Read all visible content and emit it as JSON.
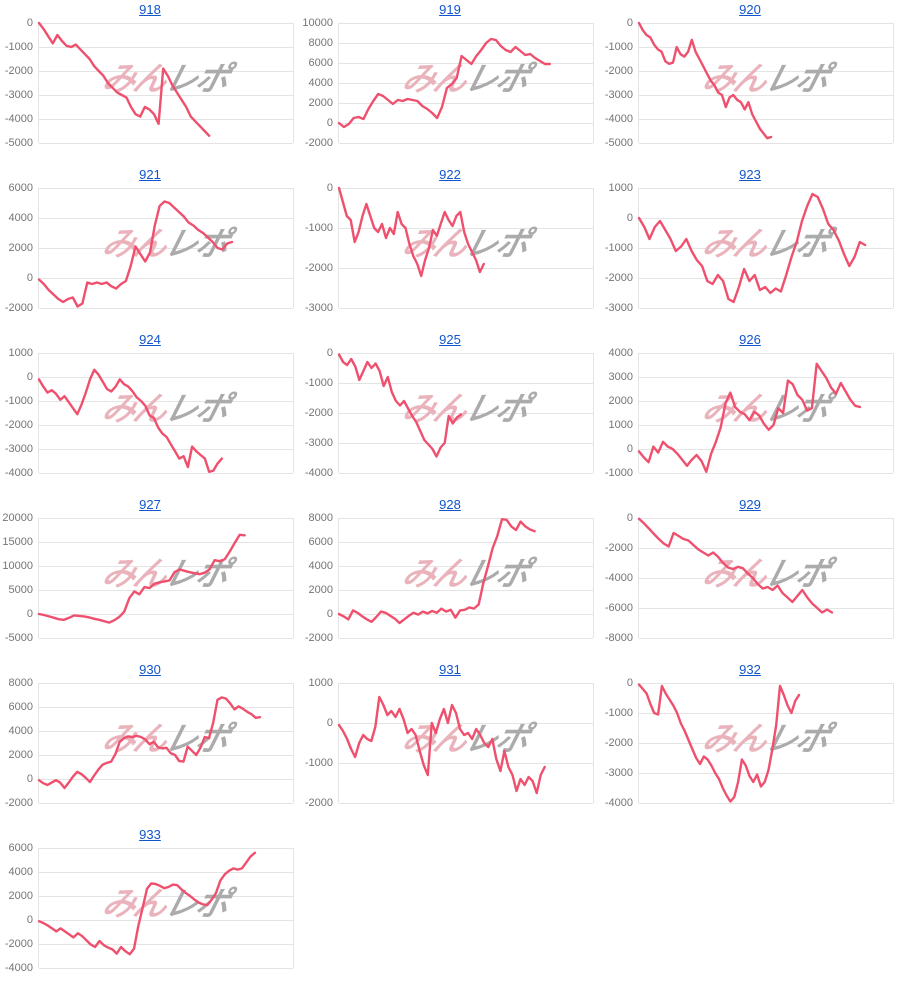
{
  "page": {
    "background": "#ffffff"
  },
  "style": {
    "line_color": "#ee506e",
    "grid_color": "#e4e4e4",
    "tick_color": "#757575",
    "link_color": "#1155cc",
    "watermark_pink_color": "#eab3bc",
    "watermark_gray_color": "#ababab"
  },
  "watermark": {
    "text_pink": "みん",
    "text_gray": "レポ"
  },
  "chart_data": [
    {
      "type": "line",
      "title": "918",
      "ylim": [
        -5000,
        0
      ],
      "yticks": [
        0,
        -1000,
        -2000,
        -3000,
        -4000,
        -5000
      ],
      "end_frac": 0.67,
      "values": [
        0,
        -250,
        -550,
        -850,
        -500,
        -750,
        -950,
        -1000,
        -900,
        -1100,
        -1300,
        -1500,
        -1800,
        -2000,
        -2200,
        -2500,
        -2700,
        -2900,
        -3000,
        -3100,
        -3500,
        -3800,
        -3900,
        -3500,
        -3600,
        -3800,
        -4200,
        -1900,
        -2200,
        -2600,
        -2900,
        -3200,
        -3500,
        -3900,
        -4100,
        -4300,
        -4500,
        -4700
      ]
    },
    {
      "type": "line",
      "title": "919",
      "ylim": [
        -2000,
        10000
      ],
      "yticks": [
        10000,
        8000,
        6000,
        4000,
        2000,
        0,
        -2000
      ],
      "end_frac": 0.83,
      "values": [
        0,
        -400,
        -100,
        500,
        600,
        400,
        1400,
        2200,
        2900,
        2700,
        2300,
        1900,
        2300,
        2200,
        2400,
        2300,
        2200,
        1700,
        1400,
        1000,
        500,
        1600,
        3500,
        3900,
        4500,
        6700,
        6300,
        5900,
        6700,
        7300,
        8000,
        8400,
        8300,
        7700,
        7300,
        7100,
        7600,
        7200,
        6800,
        6900,
        6500,
        6200,
        5900,
        5900
      ]
    },
    {
      "type": "line",
      "title": "920",
      "ylim": [
        -5000,
        0
      ],
      "yticks": [
        0,
        -1000,
        -2000,
        -3000,
        -4000,
        -5000
      ],
      "end_frac": 0.52,
      "values": [
        0,
        -300,
        -500,
        -600,
        -900,
        -1100,
        -1200,
        -1600,
        -1700,
        -1650,
        -1000,
        -1300,
        -1400,
        -1200,
        -700,
        -1200,
        -1500,
        -1800,
        -2100,
        -2400,
        -2600,
        -2900,
        -3000,
        -3500,
        -3100,
        -3000,
        -3200,
        -3300,
        -3600,
        -3300,
        -3800,
        -4100,
        -4400,
        -4600,
        -4800,
        -4750
      ]
    },
    {
      "type": "line",
      "title": "921",
      "ylim": [
        -2000,
        6000
      ],
      "yticks": [
        6000,
        4000,
        2000,
        0,
        -2000
      ],
      "end_frac": 0.76,
      "values": [
        -100,
        -400,
        -800,
        -1100,
        -1400,
        -1600,
        -1400,
        -1300,
        -1900,
        -1700,
        -300,
        -400,
        -300,
        -400,
        -300,
        -550,
        -700,
        -400,
        -200,
        800,
        2100,
        1600,
        1100,
        1700,
        3500,
        4800,
        5100,
        5000,
        4700,
        4400,
        4100,
        3700,
        3500,
        3200,
        3000,
        2700,
        2400,
        2000,
        1900,
        2300,
        2400
      ]
    },
    {
      "type": "line",
      "title": "922",
      "ylim": [
        -3000,
        0
      ],
      "yticks": [
        0,
        -1000,
        -2000,
        -3000
      ],
      "end_frac": 0.57,
      "values": [
        0,
        -350,
        -700,
        -800,
        -1350,
        -1100,
        -700,
        -400,
        -700,
        -1000,
        -1100,
        -900,
        -1250,
        -1000,
        -1150,
        -600,
        -900,
        -1000,
        -1400,
        -1700,
        -1900,
        -2200,
        -1800,
        -1500,
        -1050,
        -1200,
        -900,
        -600,
        -800,
        -950,
        -700,
        -600,
        -1100,
        -1400,
        -1600,
        -1800,
        -2100,
        -1900
      ]
    },
    {
      "type": "line",
      "title": "923",
      "ylim": [
        -3000,
        1000
      ],
      "yticks": [
        1000,
        0,
        -1000,
        -2000,
        -3000
      ],
      "end_frac": 0.89,
      "values": [
        0,
        -300,
        -700,
        -300,
        -100,
        -400,
        -700,
        -1100,
        -950,
        -700,
        -1100,
        -1400,
        -1600,
        -2100,
        -2200,
        -1900,
        -2100,
        -2700,
        -2800,
        -2300,
        -1700,
        -2100,
        -1900,
        -2400,
        -2300,
        -2500,
        -2350,
        -2450,
        -1900,
        -1300,
        -800,
        -100,
        400,
        800,
        700,
        300,
        -200,
        -400,
        -750,
        -1200,
        -1600,
        -1300,
        -800,
        -900
      ]
    },
    {
      "type": "line",
      "title": "924",
      "ylim": [
        -4000,
        1000
      ],
      "yticks": [
        1000,
        0,
        -1000,
        -2000,
        -3000,
        -4000
      ],
      "end_frac": 0.72,
      "values": [
        -100,
        -400,
        -650,
        -550,
        -700,
        -950,
        -800,
        -1050,
        -1300,
        -1550,
        -1150,
        -650,
        -100,
        300,
        100,
        -200,
        -500,
        -600,
        -400,
        -100,
        -300,
        -400,
        -600,
        -850,
        -1000,
        -1200,
        -1600,
        -1700,
        -2100,
        -2350,
        -2500,
        -2800,
        -3100,
        -3400,
        -3300,
        -3750,
        -2900,
        -3100,
        -3250,
        -3400,
        -3950,
        -3900,
        -3600,
        -3400
      ]
    },
    {
      "type": "line",
      "title": "925",
      "ylim": [
        -4000,
        0
      ],
      "yticks": [
        0,
        -1000,
        -2000,
        -3000,
        -4000
      ],
      "end_frac": 0.48,
      "values": [
        -50,
        -300,
        -400,
        -200,
        -450,
        -900,
        -600,
        -300,
        -500,
        -350,
        -600,
        -1100,
        -800,
        -1300,
        -1600,
        -1750,
        -1600,
        -1850,
        -2100,
        -2300,
        -2600,
        -2900,
        -3050,
        -3200,
        -3450,
        -3150,
        -3000,
        -2100,
        -2350,
        -2150,
        -2050
      ]
    },
    {
      "type": "line",
      "title": "926",
      "ylim": [
        -1000,
        4000
      ],
      "yticks": [
        4000,
        3000,
        2000,
        1000,
        0,
        -1000
      ],
      "end_frac": 0.87,
      "values": [
        -100,
        -350,
        -550,
        100,
        -150,
        300,
        100,
        0,
        -200,
        -450,
        -700,
        -450,
        -250,
        -500,
        -950,
        -200,
        300,
        900,
        1900,
        2350,
        1750,
        1550,
        1450,
        1200,
        1550,
        1400,
        1050,
        800,
        1000,
        1700,
        1500,
        2850,
        2700,
        2250,
        2050,
        1600,
        1700,
        3550,
        3250,
        2950,
        2550,
        2300,
        2750,
        2400,
        2050,
        1800,
        1750
      ]
    },
    {
      "type": "line",
      "title": "927",
      "ylim": [
        -5000,
        20000
      ],
      "yticks": [
        20000,
        15000,
        10000,
        5000,
        0,
        -5000
      ],
      "end_frac": 0.81,
      "values": [
        0,
        -200,
        -500,
        -800,
        -1100,
        -1200,
        -800,
        -300,
        -400,
        -500,
        -700,
        -1000,
        -1200,
        -1500,
        -1800,
        -1300,
        -600,
        500,
        3300,
        4700,
        4100,
        5600,
        5400,
        6300,
        6600,
        6800,
        7000,
        8700,
        9300,
        9000,
        8700,
        8500,
        8300,
        8600,
        9300,
        11200,
        11000,
        11400,
        13000,
        14800,
        16500,
        16400
      ]
    },
    {
      "type": "line",
      "title": "928",
      "ylim": [
        -2000,
        8000
      ],
      "yticks": [
        8000,
        6000,
        4000,
        2000,
        0,
        -2000
      ],
      "end_frac": 0.77,
      "values": [
        0,
        -200,
        -450,
        300,
        100,
        -200,
        -450,
        -650,
        -250,
        200,
        100,
        -150,
        -400,
        -750,
        -450,
        -150,
        100,
        -50,
        200,
        50,
        250,
        100,
        450,
        200,
        350,
        -300,
        300,
        350,
        550,
        450,
        800,
        2600,
        4000,
        5500,
        6500,
        7900,
        7850,
        7300,
        7000,
        7700,
        7300,
        7050,
        6900
      ]
    },
    {
      "type": "line",
      "title": "929",
      "ylim": [
        -8000,
        0
      ],
      "yticks": [
        0,
        -2000,
        -4000,
        -6000,
        -8000
      ],
      "end_frac": 0.76,
      "values": [
        -50,
        -350,
        -700,
        -1050,
        -1400,
        -1700,
        -1900,
        -1000,
        -1200,
        -1400,
        -1500,
        -1800,
        -2100,
        -2300,
        -2500,
        -2300,
        -2600,
        -3000,
        -3300,
        -3400,
        -3250,
        -3350,
        -3700,
        -4000,
        -4400,
        -4700,
        -4600,
        -4800,
        -4500,
        -5000,
        -5300,
        -5600,
        -5200,
        -4800,
        -5300,
        -5700,
        -6000,
        -6300,
        -6100,
        -6300
      ]
    },
    {
      "type": "line",
      "title": "930",
      "ylim": [
        -2000,
        8000
      ],
      "yticks": [
        8000,
        6000,
        4000,
        2000,
        0,
        -2000
      ],
      "end_frac": 0.87,
      "values": [
        -100,
        -350,
        -500,
        -300,
        -100,
        -300,
        -750,
        -300,
        200,
        600,
        400,
        100,
        -250,
        300,
        800,
        1200,
        1350,
        1450,
        2100,
        3100,
        3400,
        3550,
        3500,
        3600,
        3500,
        3300,
        2900,
        3100,
        2650,
        2550,
        2600,
        2150,
        2000,
        1500,
        1450,
        2700,
        2350,
        2000,
        2600,
        3500,
        3400,
        4700,
        6600,
        6800,
        6700,
        6300,
        5800,
        6050,
        5850,
        5600,
        5400,
        5100,
        5150
      ]
    },
    {
      "type": "line",
      "title": "931",
      "ylim": [
        -2000,
        1000
      ],
      "yticks": [
        1000,
        0,
        -1000,
        -2000
      ],
      "end_frac": 0.81,
      "values": [
        -50,
        -200,
        -400,
        -650,
        -850,
        -500,
        -300,
        -400,
        -450,
        -100,
        650,
        450,
        200,
        300,
        150,
        350,
        100,
        -250,
        -150,
        -300,
        -700,
        -1050,
        -1300,
        0,
        -250,
        100,
        350,
        0,
        450,
        250,
        -150,
        -300,
        -250,
        -400,
        -150,
        -300,
        -500,
        -600,
        -400,
        -900,
        -1200,
        -700,
        -1100,
        -1300,
        -1700,
        -1400,
        -1550,
        -1350,
        -1450,
        -1750,
        -1300,
        -1100
      ]
    },
    {
      "type": "line",
      "title": "932",
      "ylim": [
        -4000,
        0
      ],
      "yticks": [
        0,
        -1000,
        -2000,
        -3000,
        -4000
      ],
      "end_frac": 0.63,
      "values": [
        -50,
        -200,
        -350,
        -700,
        -1000,
        -1050,
        -100,
        -350,
        -550,
        -750,
        -1000,
        -1350,
        -1600,
        -1900,
        -2200,
        -2500,
        -2700,
        -2450,
        -2550,
        -2750,
        -3000,
        -3200,
        -3500,
        -3750,
        -3950,
        -3800,
        -3300,
        -2550,
        -2750,
        -3100,
        -3300,
        -3050,
        -3450,
        -3300,
        -2900,
        -2200,
        -1400,
        -100,
        -400,
        -750,
        -1000,
        -600,
        -400
      ]
    },
    {
      "type": "line",
      "title": "933",
      "ylim": [
        -4000,
        6000
      ],
      "yticks": [
        6000,
        4000,
        2000,
        0,
        -2000,
        -4000
      ],
      "end_frac": 0.85,
      "values": [
        -100,
        -250,
        -450,
        -700,
        -950,
        -700,
        -950,
        -1200,
        -1450,
        -1100,
        -1350,
        -1700,
        -2050,
        -2250,
        -1750,
        -2100,
        -2300,
        -2450,
        -2800,
        -2250,
        -2600,
        -2850,
        -2400,
        -500,
        1000,
        2600,
        3050,
        3000,
        2850,
        2650,
        2750,
        2950,
        2900,
        2550,
        2250,
        2000,
        1700,
        1450,
        1300,
        1250,
        1700,
        2250,
        3300,
        3800,
        4100,
        4300,
        4200,
        4300,
        4800,
        5300,
        5600
      ]
    }
  ]
}
